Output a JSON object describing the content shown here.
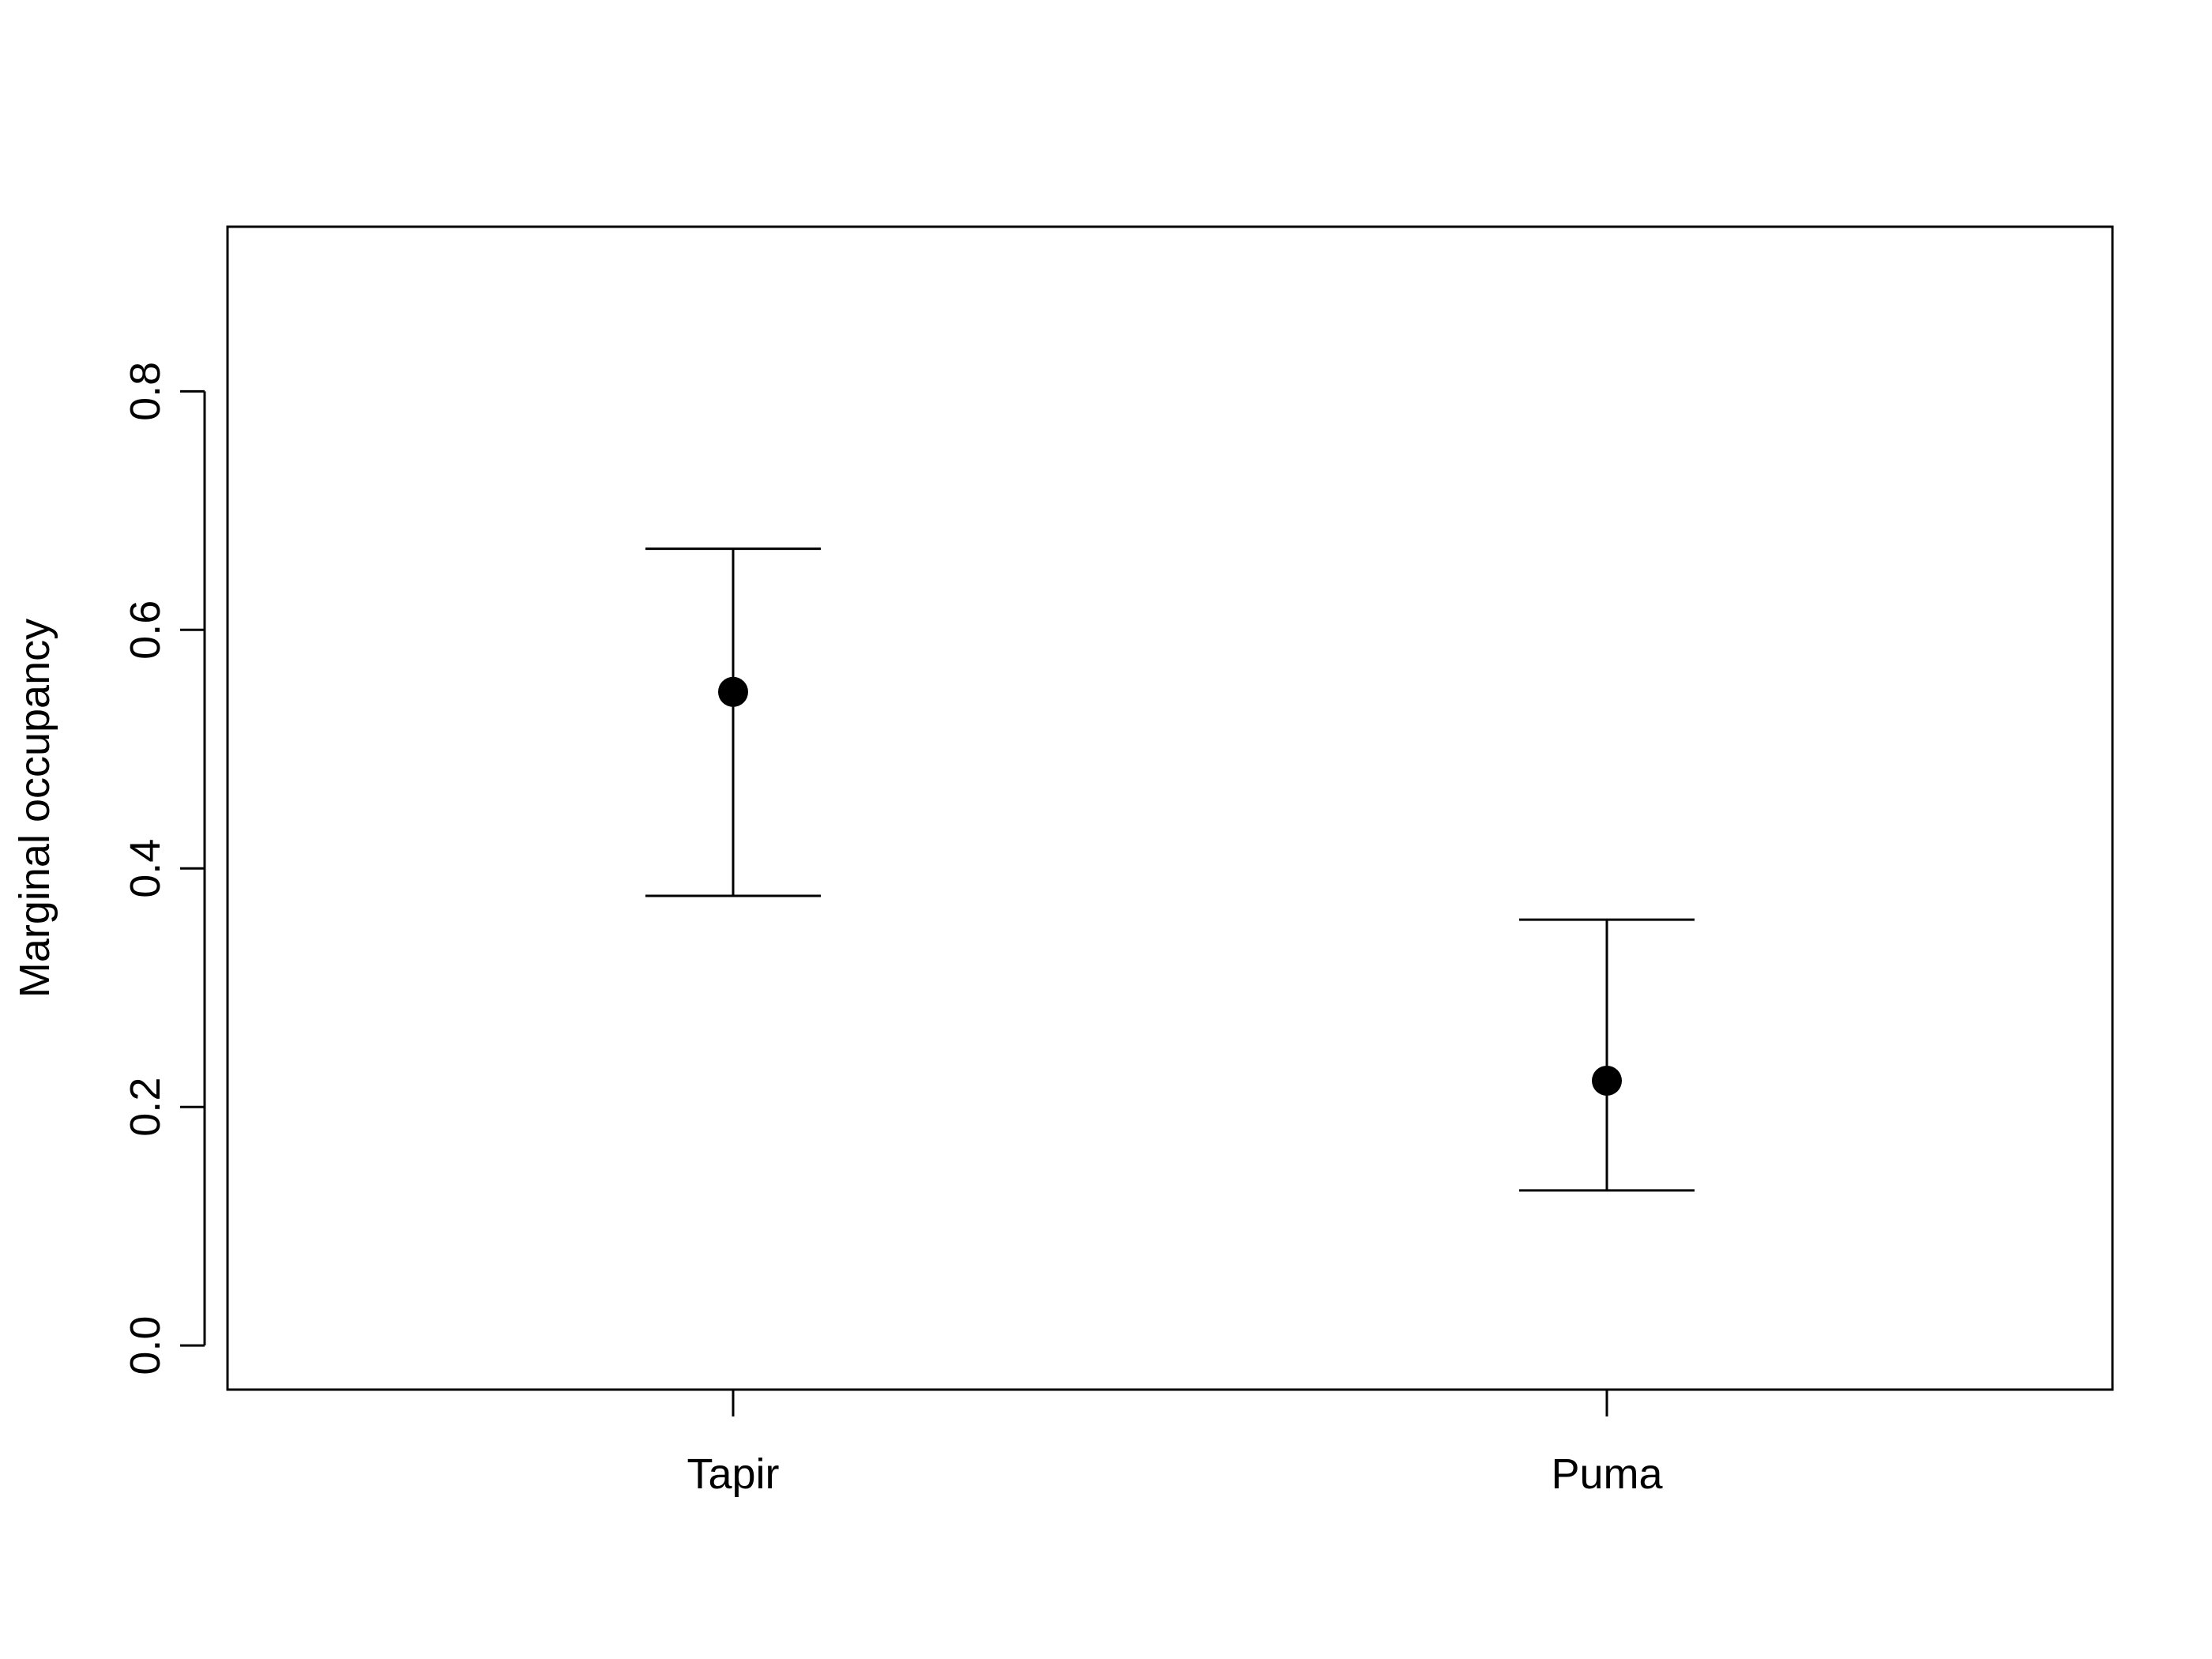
{
  "chart_data": {
    "type": "scatter",
    "title": "",
    "xlabel": "",
    "ylabel": "Marginal occupancy",
    "categories": [
      "Tapir",
      "Puma"
    ],
    "values": [
      0.548,
      0.222
    ],
    "lower": [
      0.377,
      0.13
    ],
    "upper": [
      0.668,
      0.357
    ],
    "ylim": [
      -0.037,
      0.938
    ],
    "yticks": [
      0.0,
      0.2,
      0.4,
      0.6,
      0.8
    ],
    "ytick_labels": [
      "0.0",
      "0.2",
      "0.4",
      "0.6",
      "0.8"
    ],
    "grid": false,
    "legend": "none",
    "point_color": "#000000",
    "line_color": "#000000"
  }
}
